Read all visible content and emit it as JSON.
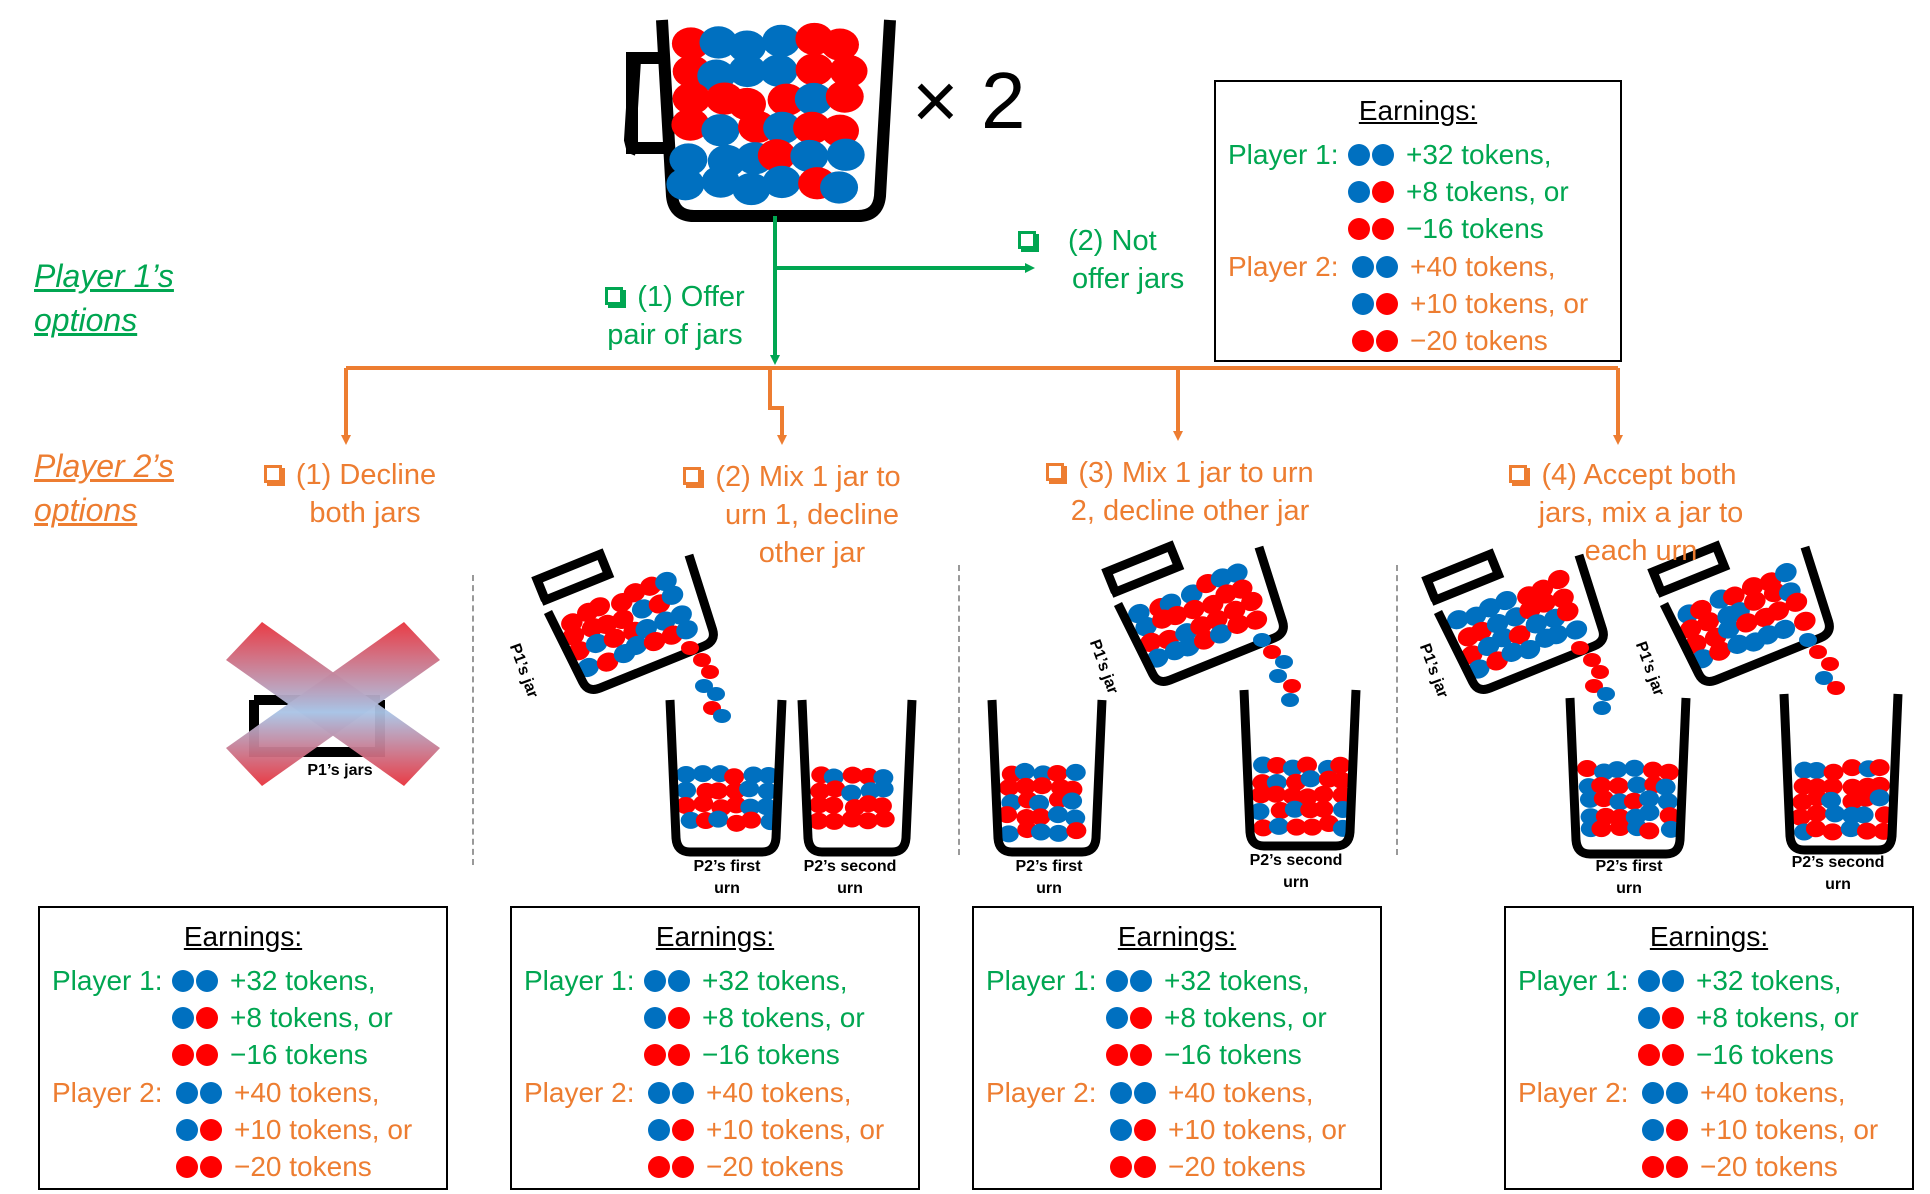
{
  "times_two": "× 2",
  "player1_heading": [
    "Player 1’s",
    "options"
  ],
  "player2_heading": [
    "Player 2’s",
    "options"
  ],
  "p1_options": [
    {
      "lines": [
        "(1) Offer",
        "pair of jars"
      ]
    },
    {
      "lines": [
        "(2) Not",
        "offer jars"
      ]
    }
  ],
  "p2_options": [
    {
      "lines": [
        "(1) Decline",
        "both jars"
      ]
    },
    {
      "lines": [
        "(2) Mix 1 jar to",
        "urn 1, decline",
        "other jar"
      ]
    },
    {
      "lines": [
        "(3) Mix 1 jar to urn",
        "2, decline other jar"
      ]
    },
    {
      "lines": [
        "(4) Accept both",
        "jars, mix a jar to",
        "each urn"
      ]
    }
  ],
  "earnings": {
    "title": "Earnings:",
    "player1_label": "Player 1:",
    "player2_label": "Player 2:",
    "player1_rows": [
      "+32 tokens,",
      "+8 tokens, or",
      "−16 tokens"
    ],
    "player2_rows": [
      "+40 tokens,",
      "+10 tokens, or",
      "−20 tokens"
    ]
  },
  "labels": {
    "p1_jars": "P1’s jars",
    "p1_jar": "P1’s jar",
    "p2_first_urn": [
      "P2’s first",
      "urn"
    ],
    "p2_second_urn": [
      "P2’s second",
      "urn"
    ]
  },
  "colors": {
    "green": "#00a651",
    "orange": "#ed7d31",
    "blue_token": "#0070c0",
    "red_token": "#ff0000",
    "x_red": "#e8323c",
    "x_blue": "#a9c4e6"
  }
}
